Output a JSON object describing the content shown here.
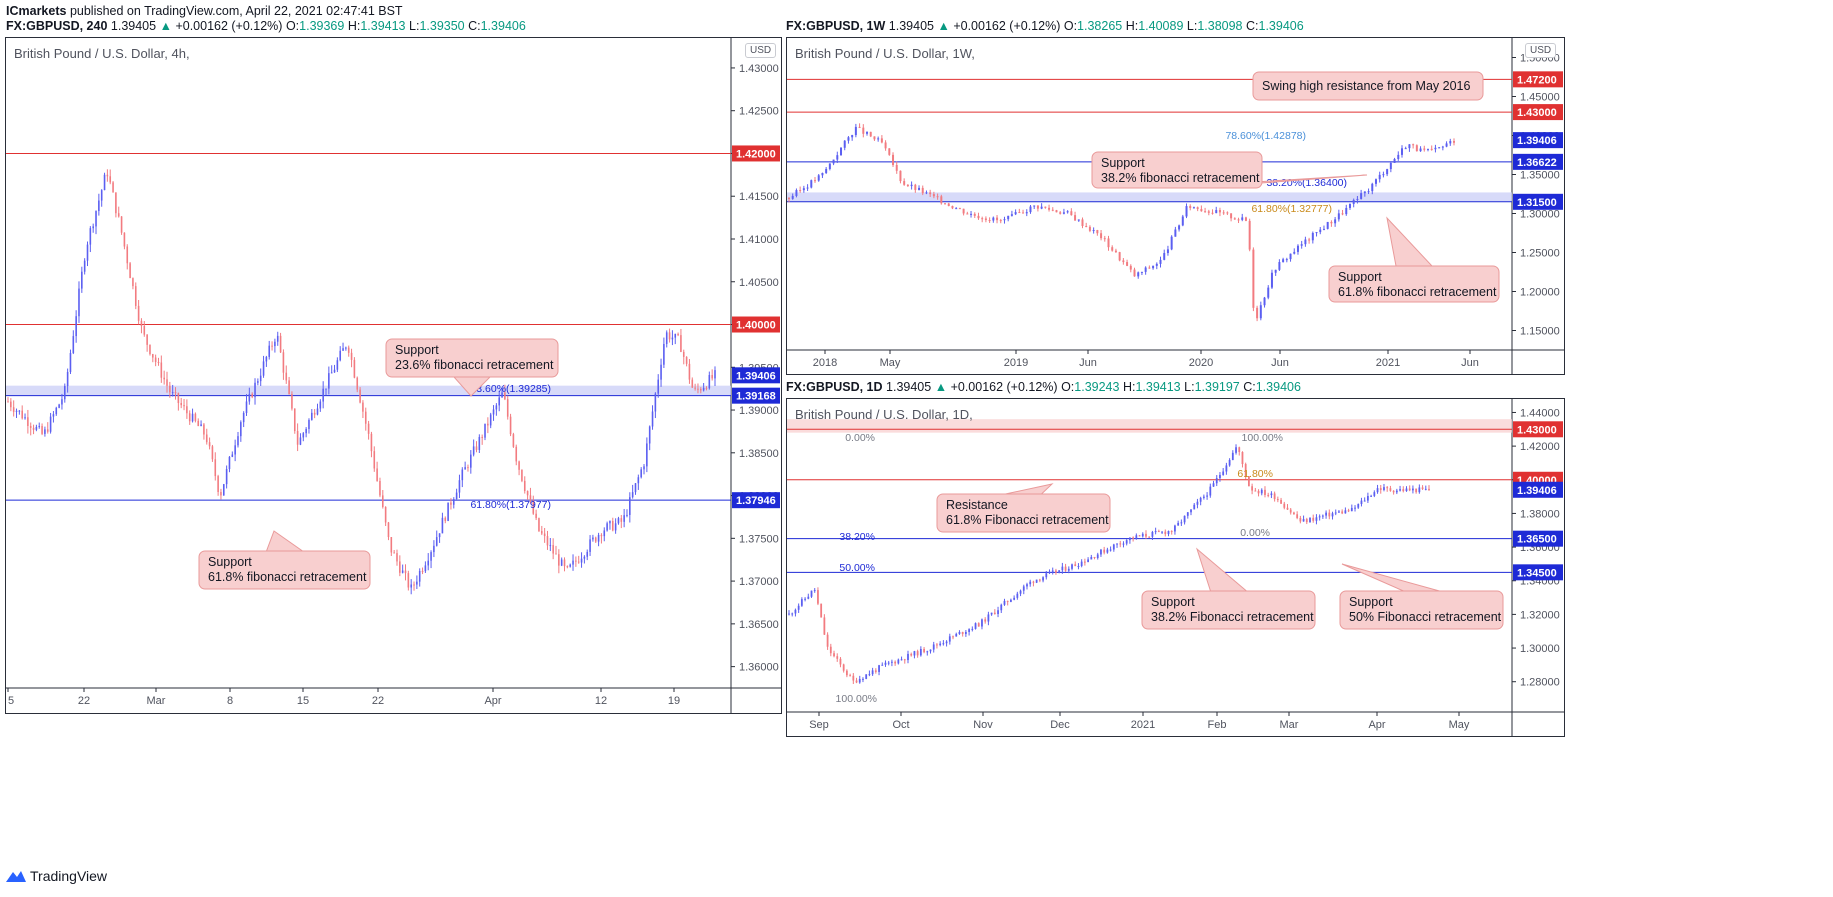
{
  "header": {
    "author": "ICmarkets",
    "published": "published on TradingView.com, April 22, 2021 02:47:41 BST"
  },
  "branding": {
    "label": "TradingView"
  },
  "colors": {
    "bull": "#5b5ff1",
    "bear": "#f27b80",
    "resistance": "#e03131",
    "support": "#1e2ad6",
    "callout_bg": "#f8cfcf",
    "callout_border": "#e99a9a",
    "zone_red": "#f8d0d0",
    "zone_blue": "#c9cdf7"
  },
  "panels": [
    {
      "symbol_line": {
        "symbol": "FX:GBPUSD, 240",
        "last": "1.39405",
        "change": "+0.00162 (+0.12%)",
        "o": "1.39369",
        "h": "1.39413",
        "l": "1.39350",
        "c": "1.39406"
      },
      "title": "British Pound / U.S. Dollar, 4h,",
      "currency": "USD",
      "y_ticks": [
        "1.43000",
        "1.42500",
        "1.42000",
        "1.41500",
        "1.41000",
        "1.40500",
        "1.40000",
        "1.39500",
        "1.39000",
        "1.38500",
        "1.38000",
        "1.37500",
        "1.37000",
        "1.36500",
        "1.36000"
      ],
      "x_ticks": [
        "5",
        "22",
        "Mar",
        "8",
        "15",
        "22",
        "Apr",
        "12",
        "19"
      ],
      "price_tags": [
        {
          "label": "1.42000",
          "color": "#e03131"
        },
        {
          "label": "1.40000",
          "color": "#e03131"
        },
        {
          "label": "1.39406",
          "color": "#1e2ad6"
        },
        {
          "label": "1.39168",
          "color": "#1e2ad6"
        },
        {
          "label": "1.37946",
          "color": "#1e2ad6"
        }
      ],
      "fib_labels": [
        "23.60%(1.39285)",
        "61.80%(1.37977)"
      ],
      "callouts": [
        {
          "line1": "Support",
          "line2": "23.6% fibonacci retracement"
        },
        {
          "line1": "Support",
          "line2": "61.8% fibonacci retracement"
        }
      ]
    },
    {
      "symbol_line": {
        "symbol": "FX:GBPUSD, 1W",
        "last": "1.39405",
        "change": "+0.00162 (+0.12%)",
        "o": "1.38265",
        "h": "1.40089",
        "l": "1.38098",
        "c": "1.39406"
      },
      "title": "British Pound / U.S. Dollar, 1W,",
      "currency": "USD",
      "y_ticks": [
        "1.50000",
        "1.45000",
        "1.40000",
        "1.35000",
        "1.30000",
        "1.25000",
        "1.20000",
        "1.15000"
      ],
      "x_ticks": [
        "2018",
        "May",
        "2019",
        "Jun",
        "2020",
        "Jun",
        "2021",
        "Jun"
      ],
      "price_tags": [
        {
          "label": "1.47200",
          "color": "#e03131"
        },
        {
          "label": "1.43000",
          "color": "#e03131"
        },
        {
          "label": "1.39406",
          "color": "#1e2ad6"
        },
        {
          "label": "1.36622",
          "color": "#1e2ad6"
        },
        {
          "label": "1.31500",
          "color": "#1e2ad6"
        }
      ],
      "fib_labels": [
        "78.60%(1.42878)",
        "38.20%(1.36400)",
        "61.80%(1.32777)"
      ],
      "callouts": [
        {
          "line1": "Swing high resistance from May 2016",
          "line2": ""
        },
        {
          "line1": "Support",
          "line2": "38.2% fibonacci retracement"
        },
        {
          "line1": "Support",
          "line2": "61.8% fibonacci retracement"
        }
      ]
    },
    {
      "symbol_line": {
        "symbol": "FX:GBPUSD, 1D",
        "last": "1.39405",
        "change": "+0.00162 (+0.12%)",
        "o": "1.39243",
        "h": "1.39413",
        "l": "1.39197",
        "c": "1.39406"
      },
      "title": "British Pound / U.S. Dollar, 1D,",
      "currency": "",
      "y_ticks": [
        "1.44000",
        "1.42000",
        "1.40000",
        "1.38000",
        "1.36000",
        "1.34000",
        "1.32000",
        "1.30000",
        "1.28000"
      ],
      "x_ticks": [
        "Sep",
        "Oct",
        "Nov",
        "Dec",
        "2021",
        "Feb",
        "Mar",
        "Apr",
        "May"
      ],
      "price_tags": [
        {
          "label": "1.43000",
          "color": "#e03131"
        },
        {
          "label": "1.40000",
          "color": "#e03131"
        },
        {
          "label": "1.39406",
          "color": "#1e2ad6"
        },
        {
          "label": "1.36500",
          "color": "#1e2ad6"
        },
        {
          "label": "1.34500",
          "color": "#1e2ad6"
        }
      ],
      "fib_labels": [
        "0.00%",
        "100.00%",
        "61.80%",
        "0.00%",
        "38.20%",
        "50.00%",
        "100.00%"
      ],
      "callouts": [
        {
          "line1": "Resistance",
          "line2": "61.8% Fibonacci retracement"
        },
        {
          "line1": "Support",
          "line2": "38.2% Fibonacci retracement"
        },
        {
          "line1": "Support",
          "line2": "50% Fibonacci retracement"
        }
      ]
    }
  ],
  "chart_data": [
    {
      "type": "candlestick",
      "title": "British Pound / U.S. Dollar, 4h,",
      "x_range": [
        "5",
        "19"
      ],
      "ylim": [
        1.3575,
        1.4335
      ],
      "levels": [
        {
          "price": 1.42,
          "kind": "resistance"
        },
        {
          "price": 1.4,
          "kind": "resistance"
        },
        {
          "price": 1.39168,
          "kind": "support"
        },
        {
          "price": 1.37946,
          "kind": "support"
        }
      ],
      "zone": [
        1.39168,
        1.39285
      ],
      "path": [
        [
          0,
          1.391
        ],
        [
          0.05,
          1.387
        ],
        [
          0.08,
          1.392
        ],
        [
          0.11,
          1.409
        ],
        [
          0.14,
          1.418
        ],
        [
          0.16,
          1.411
        ],
        [
          0.19,
          1.399
        ],
        [
          0.23,
          1.392
        ],
        [
          0.28,
          1.387
        ],
        [
          0.3,
          1.38
        ],
        [
          0.33,
          1.389
        ],
        [
          0.38,
          1.399
        ],
        [
          0.41,
          1.386
        ],
        [
          0.45,
          1.393
        ],
        [
          0.48,
          1.398
        ],
        [
          0.51,
          1.387
        ],
        [
          0.54,
          1.374
        ],
        [
          0.57,
          1.369
        ],
        [
          0.6,
          1.374
        ],
        [
          0.64,
          1.382
        ],
        [
          0.67,
          1.387
        ],
        [
          0.7,
          1.392
        ],
        [
          0.72,
          1.384
        ],
        [
          0.75,
          1.376
        ],
        [
          0.79,
          1.371
        ],
        [
          0.81,
          1.373
        ],
        [
          0.84,
          1.376
        ],
        [
          0.87,
          1.377
        ],
        [
          0.9,
          1.384
        ],
        [
          0.93,
          1.399
        ],
        [
          0.95,
          1.398
        ],
        [
          0.97,
          1.392
        ],
        [
          1,
          1.394
        ]
      ]
    },
    {
      "type": "candlestick",
      "title": "British Pound / U.S. Dollar, 1W,",
      "x_range": [
        "2018",
        "Jun"
      ],
      "ylim": [
        1.125,
        1.525
      ],
      "levels": [
        {
          "price": 1.472,
          "kind": "resistance"
        },
        {
          "price": 1.43,
          "kind": "resistance"
        },
        {
          "price": 1.36622,
          "kind": "support"
        },
        {
          "price": 1.315,
          "kind": "support"
        }
      ],
      "zone": [
        1.315,
        1.327
      ],
      "path": [
        [
          0,
          1.32
        ],
        [
          0.05,
          1.35
        ],
        [
          0.1,
          1.41
        ],
        [
          0.14,
          1.39
        ],
        [
          0.17,
          1.34
        ],
        [
          0.22,
          1.32
        ],
        [
          0.27,
          1.3
        ],
        [
          0.32,
          1.29
        ],
        [
          0.37,
          1.31
        ],
        [
          0.42,
          1.3
        ],
        [
          0.47,
          1.27
        ],
        [
          0.52,
          1.22
        ],
        [
          0.56,
          1.24
        ],
        [
          0.6,
          1.31
        ],
        [
          0.65,
          1.3
        ],
        [
          0.69,
          1.29
        ],
        [
          0.7,
          1.16
        ],
        [
          0.73,
          1.23
        ],
        [
          0.77,
          1.26
        ],
        [
          0.8,
          1.28
        ],
        [
          0.83,
          1.3
        ],
        [
          0.87,
          1.33
        ],
        [
          0.91,
          1.37
        ],
        [
          0.93,
          1.39
        ],
        [
          0.95,
          1.38
        ],
        [
          0.97,
          1.38
        ],
        [
          1,
          1.394
        ]
      ]
    },
    {
      "type": "candlestick",
      "title": "British Pound / U.S. Dollar, 1D,",
      "x_range": [
        "Sep",
        "May"
      ],
      "ylim": [
        1.262,
        1.448
      ],
      "levels": [
        {
          "price": 1.43,
          "kind": "resistance"
        },
        {
          "price": 1.4,
          "kind": "resistance"
        },
        {
          "price": 1.365,
          "kind": "support"
        },
        {
          "price": 1.345,
          "kind": "support"
        }
      ],
      "zone": [
        1.428,
        1.436
      ],
      "path": [
        [
          0,
          1.32
        ],
        [
          0.04,
          1.335
        ],
        [
          0.06,
          1.3
        ],
        [
          0.1,
          1.28
        ],
        [
          0.15,
          1.29
        ],
        [
          0.22,
          1.3
        ],
        [
          0.3,
          1.315
        ],
        [
          0.38,
          1.34
        ],
        [
          0.45,
          1.35
        ],
        [
          0.53,
          1.365
        ],
        [
          0.6,
          1.37
        ],
        [
          0.66,
          1.395
        ],
        [
          0.7,
          1.42
        ],
        [
          0.72,
          1.395
        ],
        [
          0.76,
          1.39
        ],
        [
          0.8,
          1.375
        ],
        [
          0.85,
          1.38
        ],
        [
          0.88,
          1.382
        ],
        [
          0.92,
          1.395
        ],
        [
          0.94,
          1.394
        ]
      ]
    }
  ]
}
